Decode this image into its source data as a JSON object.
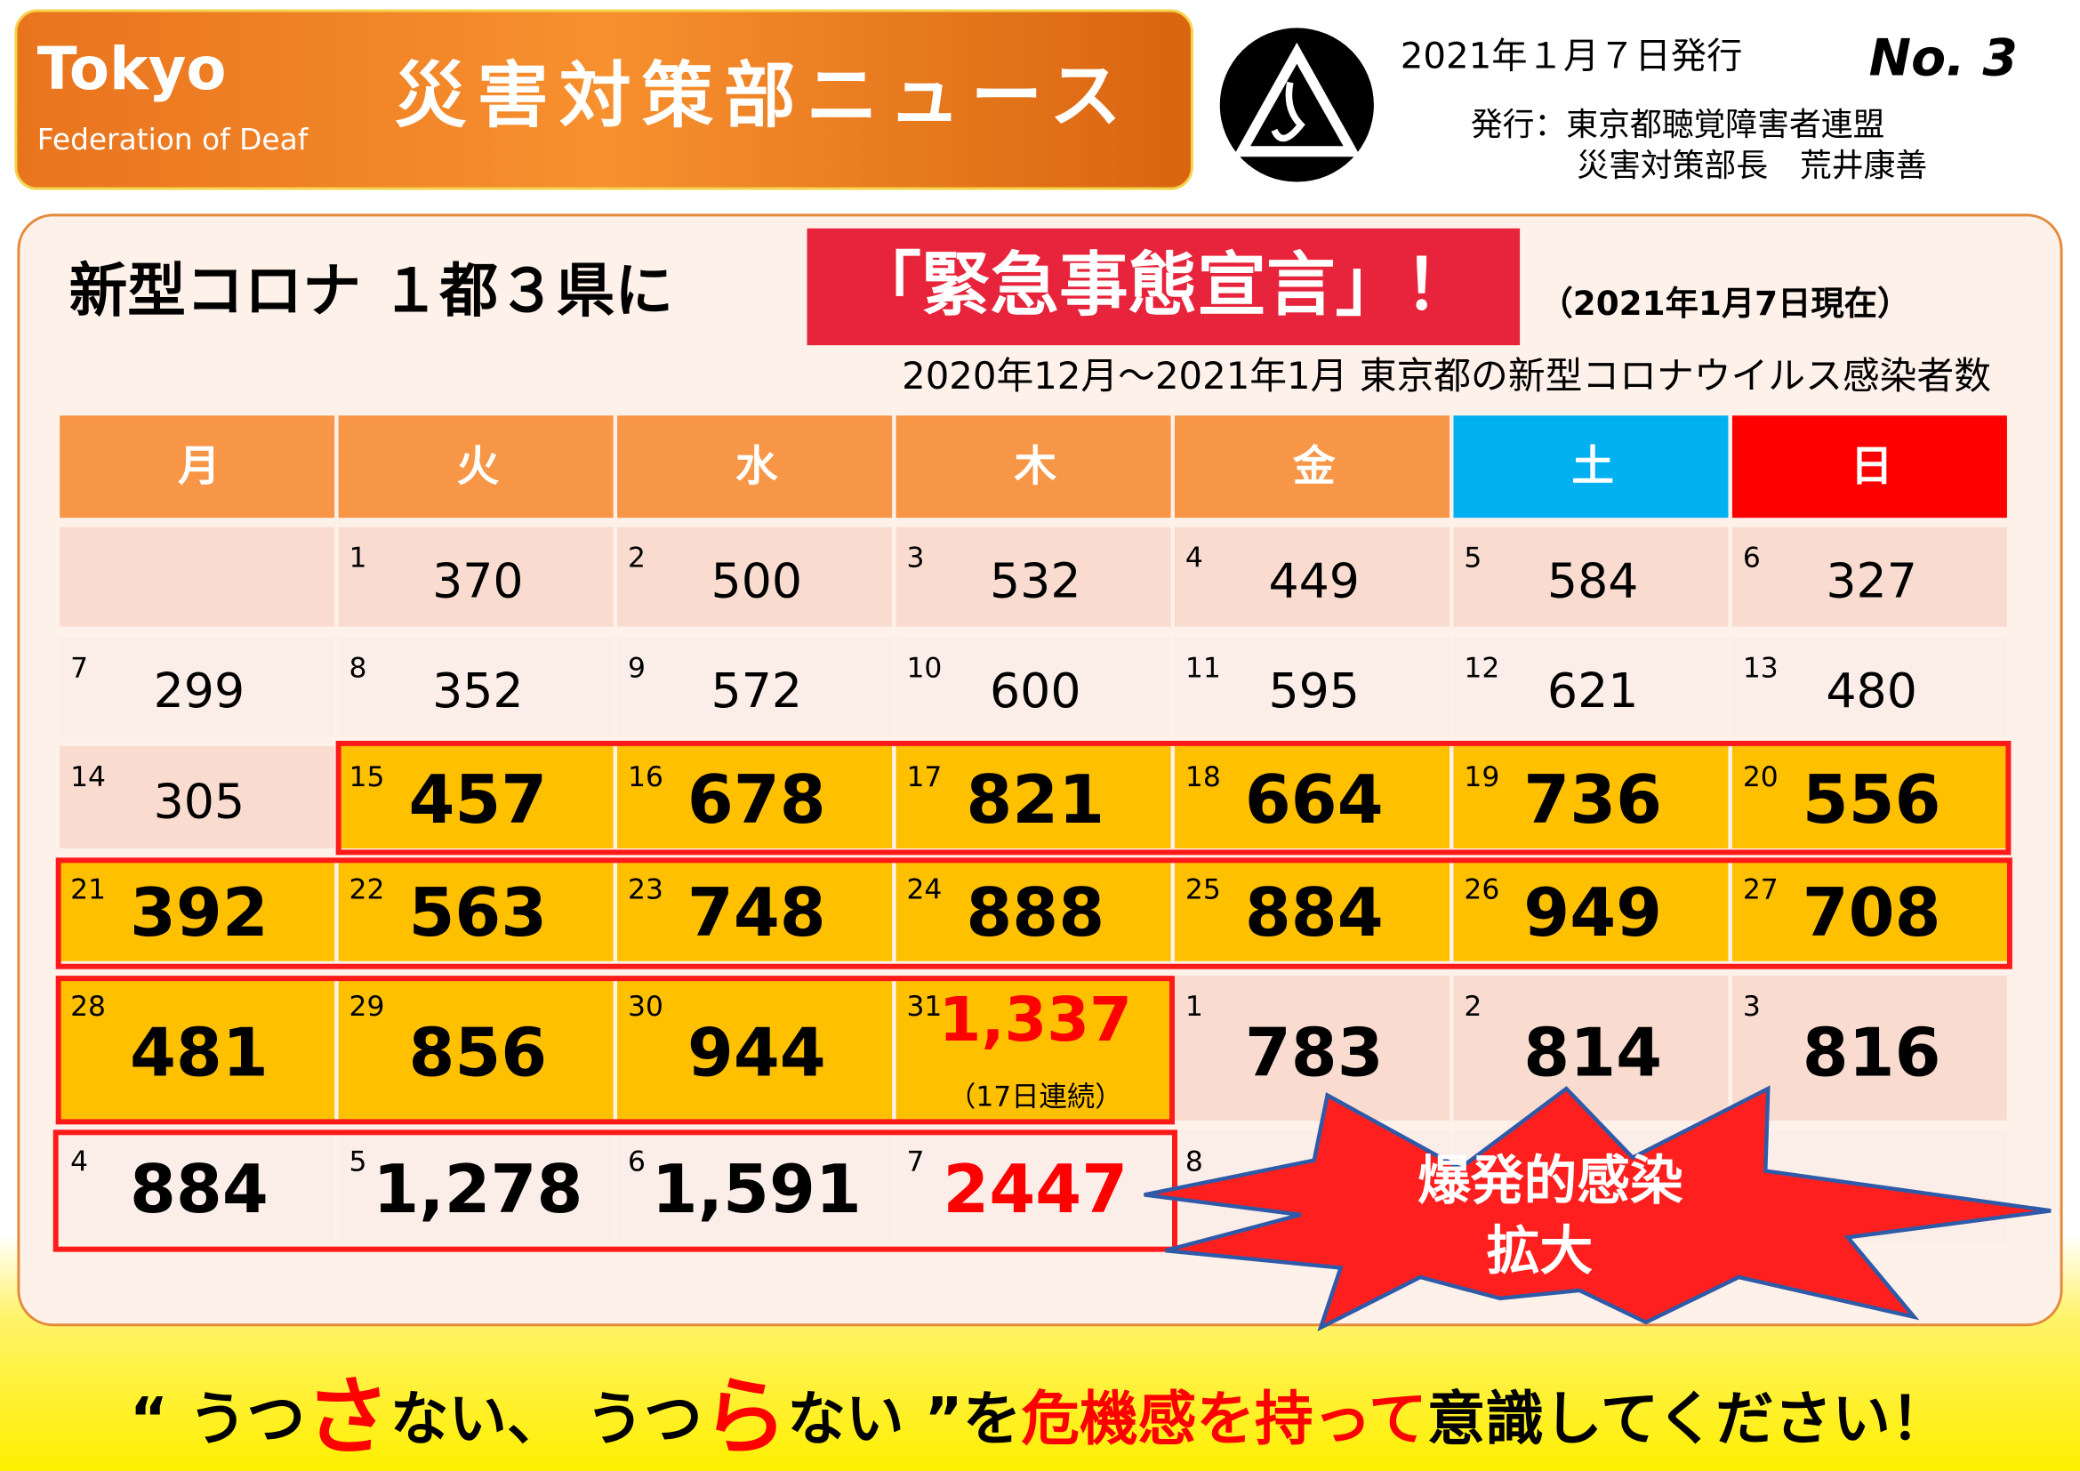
{
  "header": {
    "logo_title": "Tokyo",
    "logo_subtitle": "Federation of Deaf",
    "title": "災害対策部ニュース",
    "date": "2021年１月７日発行",
    "issue": "No. 3",
    "publisher_line1": "発行：東京都聴覚障害者連盟",
    "publisher_line2": "災害対策部長　荒井康善"
  },
  "headline": {
    "prefix": "新型コロナ １都３県に",
    "emphasis": "「緊急事態宣言」！",
    "as_of": "（2021年1月7日現在）",
    "caption": "2020年12月～2021年1月 東京都の新型コロナウイルス感染者数"
  },
  "table": {
    "columns": [
      "月",
      "火",
      "水",
      "木",
      "金",
      "土",
      "日"
    ],
    "rows": [
      [
        null,
        {
          "day": 1,
          "count": 370
        },
        {
          "day": 2,
          "count": 500
        },
        {
          "day": 3,
          "count": 532
        },
        {
          "day": 4,
          "count": 449
        },
        {
          "day": 5,
          "count": 584
        },
        {
          "day": 6,
          "count": 327
        }
      ],
      [
        {
          "day": 7,
          "count": 299
        },
        {
          "day": 8,
          "count": 352
        },
        {
          "day": 9,
          "count": 572
        },
        {
          "day": 10,
          "count": 600
        },
        {
          "day": 11,
          "count": 595
        },
        {
          "day": 12,
          "count": 621
        },
        {
          "day": 13,
          "count": 480
        }
      ],
      [
        {
          "day": 14,
          "count": 305
        },
        {
          "day": 15,
          "count": 457,
          "highlight": true
        },
        {
          "day": 16,
          "count": 678,
          "highlight": true
        },
        {
          "day": 17,
          "count": 821,
          "highlight": true
        },
        {
          "day": 18,
          "count": 664,
          "highlight": true
        },
        {
          "day": 19,
          "count": 736,
          "highlight": true
        },
        {
          "day": 20,
          "count": 556,
          "highlight": true
        }
      ],
      [
        {
          "day": 21,
          "count": 392,
          "highlight": true
        },
        {
          "day": 22,
          "count": 563,
          "highlight": true
        },
        {
          "day": 23,
          "count": 748,
          "highlight": true
        },
        {
          "day": 24,
          "count": 888,
          "highlight": true
        },
        {
          "day": 25,
          "count": 884,
          "highlight": true
        },
        {
          "day": 26,
          "count": 949,
          "highlight": true
        },
        {
          "day": 27,
          "count": 708,
          "highlight": true
        }
      ],
      [
        {
          "day": 28,
          "count": 481,
          "highlight": true
        },
        {
          "day": 29,
          "count": 856,
          "highlight": true
        },
        {
          "day": 30,
          "count": 944,
          "highlight": true
        },
        {
          "day": 31,
          "count": "1,337",
          "highlight": true,
          "color": "#ff0000",
          "note": "（17日連続）"
        },
        {
          "day": 1,
          "count": 783,
          "bold": true
        },
        {
          "day": 2,
          "count": 814,
          "bold": true
        },
        {
          "day": 3,
          "count": 816,
          "bold": true
        }
      ],
      [
        {
          "day": 4,
          "count": 884,
          "bold": true
        },
        {
          "day": 5,
          "count": "1,278",
          "bold": true
        },
        {
          "day": 6,
          "count": "1,591",
          "bold": true
        },
        {
          "day": 7,
          "count": 2447,
          "bold": true,
          "color": "#ff0000"
        },
        {
          "day": 8
        },
        null,
        null
      ]
    ]
  },
  "burst": {
    "line1": "爆発的感染",
    "line2": "拡大"
  },
  "slogan": [
    {
      "text": "“ うつ",
      "color": "#000000"
    },
    {
      "text": "さ",
      "color": "#ff0000",
      "large": true
    },
    {
      "text": "ない、 うつ",
      "color": "#000000"
    },
    {
      "text": "ら",
      "color": "#ff0000",
      "large": true
    },
    {
      "text": "ない ”を",
      "color": "#000000"
    },
    {
      "text": "危機感を持って",
      "color": "#ff0000"
    },
    {
      "text": "意識してください！",
      "color": "#000000"
    }
  ]
}
